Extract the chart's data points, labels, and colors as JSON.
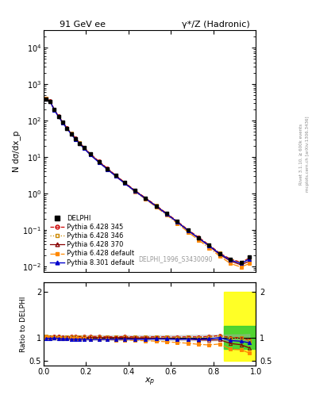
{
  "title_left": "91 GeV ee",
  "title_right": "γ*/Z (Hadronic)",
  "ylabel_main": "N dσ/dx_p",
  "ylabel_ratio": "Ratio to DELPHI",
  "xlabel": "x_p",
  "rivet_label": "Rivet 3.1.10, ≥ 600k events",
  "mcplots_label": "mcplots.cern.ch [arXiv:1306.3436]",
  "dataset_label": "DELPHI_1996_S3430090",
  "xp_data": [
    0.01,
    0.03,
    0.05,
    0.07,
    0.09,
    0.11,
    0.13,
    0.15,
    0.17,
    0.19,
    0.22,
    0.26,
    0.3,
    0.34,
    0.38,
    0.43,
    0.48,
    0.53,
    0.58,
    0.63,
    0.68,
    0.73,
    0.78,
    0.83,
    0.88,
    0.93,
    0.97
  ],
  "delphi_y": [
    400,
    340,
    200,
    130,
    90,
    62,
    44,
    32,
    24,
    18,
    12,
    7.5,
    4.8,
    3.1,
    2.0,
    1.2,
    0.75,
    0.46,
    0.28,
    0.17,
    0.1,
    0.062,
    0.038,
    0.022,
    0.016,
    0.013,
    0.018
  ],
  "delphi_err": [
    20,
    18,
    10,
    7,
    5,
    3.2,
    2.2,
    1.6,
    1.2,
    0.9,
    0.6,
    0.38,
    0.24,
    0.16,
    0.1,
    0.06,
    0.038,
    0.024,
    0.015,
    0.009,
    0.006,
    0.0038,
    0.0024,
    0.0014,
    0.0011,
    0.0009,
    0.0014
  ],
  "py6_345_y": [
    410,
    345,
    205,
    133,
    91,
    63,
    45,
    33,
    24.5,
    18.5,
    12.3,
    7.7,
    4.9,
    3.15,
    2.05,
    1.22,
    0.76,
    0.47,
    0.285,
    0.172,
    0.102,
    0.063,
    0.039,
    0.023,
    0.016,
    0.013,
    0.017
  ],
  "py6_346_y": [
    410,
    344,
    204,
    132,
    90,
    62.5,
    44.5,
    32.5,
    24.2,
    18.2,
    12.1,
    7.6,
    4.85,
    3.12,
    2.02,
    1.21,
    0.755,
    0.465,
    0.282,
    0.17,
    0.101,
    0.062,
    0.0385,
    0.0228,
    0.0158,
    0.0129,
    0.0168
  ],
  "py6_370_y": [
    408,
    342,
    203,
    131,
    89.5,
    62,
    44,
    32,
    24,
    18,
    12.0,
    7.5,
    4.8,
    3.1,
    2.0,
    1.19,
    0.745,
    0.455,
    0.275,
    0.165,
    0.097,
    0.059,
    0.036,
    0.021,
    0.014,
    0.011,
    0.014
  ],
  "py6_def_y": [
    405,
    338,
    200,
    129,
    88,
    61,
    43,
    31.5,
    23.5,
    17.5,
    11.6,
    7.2,
    4.6,
    2.95,
    1.9,
    1.13,
    0.7,
    0.425,
    0.255,
    0.152,
    0.088,
    0.053,
    0.032,
    0.019,
    0.012,
    0.0096,
    0.012
  ],
  "py8_def_y": [
    395,
    335,
    198,
    128,
    87.5,
    60.5,
    42.5,
    31,
    23.2,
    17.4,
    11.5,
    7.2,
    4.62,
    2.98,
    1.94,
    1.16,
    0.725,
    0.448,
    0.272,
    0.164,
    0.097,
    0.06,
    0.037,
    0.022,
    0.015,
    0.012,
    0.016
  ],
  "colors": {
    "delphi": "#000000",
    "py6_345": "#cc0000",
    "py6_346": "#cc8800",
    "py6_370": "#880000",
    "py6_def": "#ff8800",
    "py8_def": "#0000cc"
  }
}
